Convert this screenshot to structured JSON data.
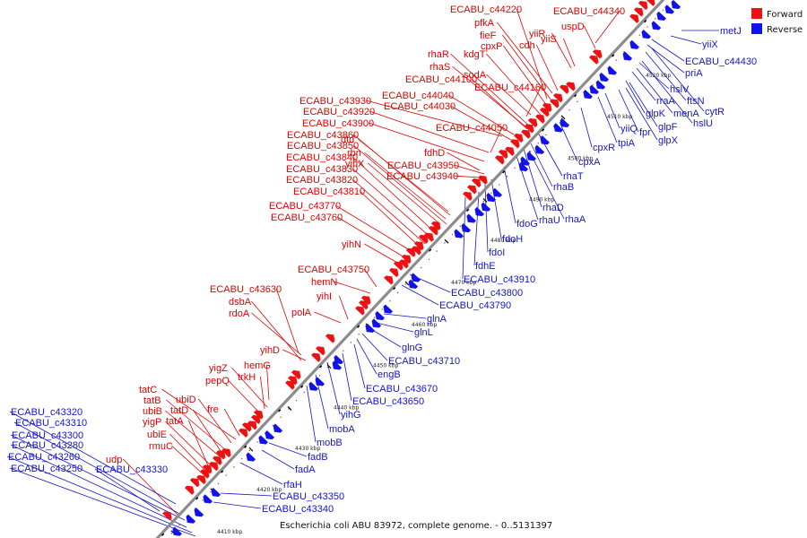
{
  "caption": "Escherichia coli ABU 83972, complete genome. - 0..5131397",
  "legend": {
    "forward_label": "Forward",
    "reverse_label": "Reverse",
    "forward_color": "#ee1111",
    "reverse_color": "#1111ee"
  },
  "track_colors": {
    "backbone": "#8a8a8a",
    "forward_label": "#e00000",
    "reverse_label": "#1515c8"
  },
  "scale_ticks": [
    "4410 kbp",
    "4420 kbp",
    "4430 kbp",
    "4440 kbp",
    "4450 kbp",
    "4460 kbp",
    "4470 kbp",
    "4480 kbp",
    "4490 kbp",
    "4500 kbp",
    "4510 kbp",
    "4520 kbp"
  ],
  "forward_genes": [
    "ECABU_c44220",
    "ECABU_c44340",
    "pfkA",
    "uspD",
    "yiiR",
    "fieF",
    "yiiS",
    "cdh",
    "cpxP",
    "rhaR",
    "kdgT",
    "rhaS",
    "sodA",
    "ECABU_c44100",
    "ECABU_c44160",
    "ECABU_c44040",
    "ECABU_c43930",
    "ECABU_c43920",
    "ECABU_c44030",
    "ECABU_c43900",
    "ECABU_c44050",
    "ECABU_c43860",
    "ECABU_c43850",
    "dtd",
    "rbn",
    "fdhD",
    "ECABU_c43840",
    "yihX",
    "ECABU_c43950",
    "ECABU_c43830",
    "ECABU_c43940",
    "ECABU_c43820",
    "ECABU_c43810",
    "ECABU_c43770",
    "ECABU_c43760",
    "yihN",
    "ECABU_c43750",
    "hemN",
    "ECABU_c43630",
    "yihI",
    "dsbA",
    "polA",
    "rdoA",
    "yihD",
    "yigZ",
    "hemG",
    "pepQ",
    "trkH",
    "tatC",
    "ubiD",
    "tatB",
    "fre",
    "ubiB",
    "tatD",
    "yigP",
    "tatA",
    "ubiE",
    "rmuC",
    "udp"
  ],
  "reverse_genes": [
    "metJ",
    "yiiX",
    "ECABU_c44430",
    "priA",
    "hslV",
    "ftsN",
    "rraA",
    "cytR",
    "glpK",
    "menA",
    "hslU",
    "yiiQ",
    "glpF",
    "fpr",
    "glpX",
    "tpiA",
    "cpxR",
    "cpxA",
    "rhaT",
    "rhaB",
    "rhaD",
    "rhaU",
    "rhaA",
    "fdoG",
    "fdoH",
    "fdoI",
    "fdhE",
    "ECABU_c43910",
    "ECABU_c43800",
    "ECABU_c43790",
    "glnA",
    "glnL",
    "glnG",
    "ECABU_c43710",
    "engB",
    "ECABU_c43670",
    "ECABU_c43650",
    "yihG",
    "mobA",
    "mobB",
    "fadB",
    "fadA",
    "rfaH",
    "ECABU_c43350",
    "ECABU_c43340",
    "ECABU_c43320",
    "ECABU_c43310",
    "ECABU_c43300",
    "ECABU_c43280",
    "ECABU_c43260",
    "ECABU_c43250",
    "ECABU_c43330"
  ]
}
